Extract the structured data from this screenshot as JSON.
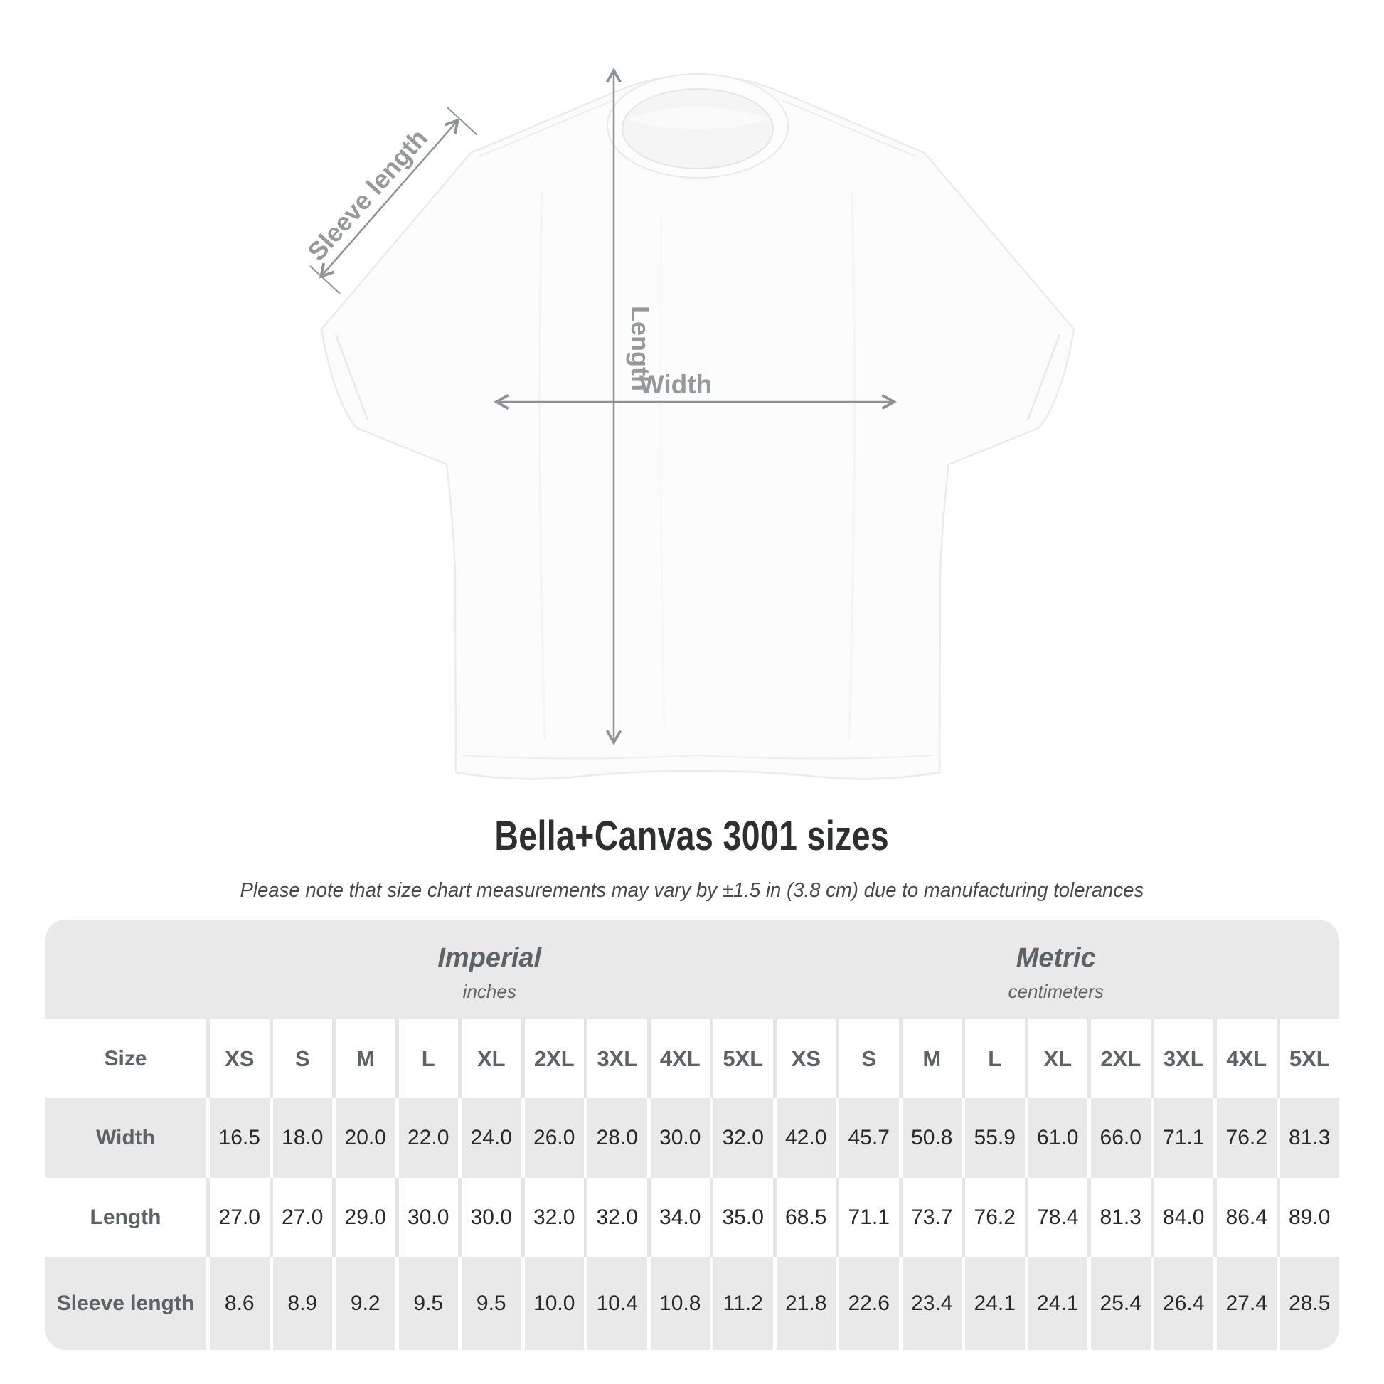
{
  "title": "Bella+Canvas 3001 sizes",
  "subtitle": "Please note that size chart measurements may vary by ±1.5 in (3.8 cm) due to manufacturing tolerances",
  "diagram": {
    "sleeve_length_label": "Sleeve length",
    "length_label": "Length",
    "width_label": "Width"
  },
  "table": {
    "size_header": "Size",
    "sections": [
      {
        "label": "Imperial",
        "units": "inches"
      },
      {
        "label": "Metric",
        "units": "centimeters"
      }
    ],
    "sizes": [
      "XS",
      "S",
      "M",
      "L",
      "XL",
      "2XL",
      "3XL",
      "4XL",
      "5XL"
    ],
    "rows": [
      {
        "label": "Width",
        "imperial": [
          "16.5",
          "18.0",
          "20.0",
          "22.0",
          "24.0",
          "26.0",
          "28.0",
          "30.0",
          "32.0"
        ],
        "metric": [
          "42.0",
          "45.7",
          "50.8",
          "55.9",
          "61.0",
          "66.0",
          "71.1",
          "76.2",
          "81.3"
        ]
      },
      {
        "label": "Length",
        "imperial": [
          "27.0",
          "27.0",
          "29.0",
          "30.0",
          "30.0",
          "32.0",
          "32.0",
          "34.0",
          "35.0"
        ],
        "metric": [
          "68.5",
          "71.1",
          "73.7",
          "76.2",
          "78.4",
          "81.3",
          "84.0",
          "86.4",
          "89.0"
        ]
      },
      {
        "label": "Sleeve length",
        "imperial": [
          "8.6",
          "8.9",
          "9.2",
          "9.5",
          "9.5",
          "10.0",
          "10.4",
          "10.8",
          "11.2"
        ],
        "metric": [
          "21.8",
          "22.6",
          "23.4",
          "24.1",
          "24.1",
          "25.4",
          "26.4",
          "27.4",
          "28.5"
        ]
      }
    ]
  },
  "colors": {
    "dimension_gray": "#8d9296",
    "label_gray": "#95999c",
    "table_gray": "#e9e9ea",
    "header_text": "#5d6266",
    "value_text": "#26282a",
    "title_text": "#2d2f31"
  },
  "chart_data": {
    "type": "table",
    "title": "Bella+Canvas 3001 sizes",
    "note": "Please note that size chart measurements may vary by ±1.5 in (3.8 cm) due to manufacturing tolerances",
    "column_groups": [
      "Imperial (inches)",
      "Metric (centimeters)"
    ],
    "columns": [
      "Size",
      "XS",
      "S",
      "M",
      "L",
      "XL",
      "2XL",
      "3XL",
      "4XL",
      "5XL",
      "XS",
      "S",
      "M",
      "L",
      "XL",
      "2XL",
      "3XL",
      "4XL",
      "5XL"
    ],
    "rows": [
      [
        "Width",
        16.5,
        18.0,
        20.0,
        22.0,
        24.0,
        26.0,
        28.0,
        30.0,
        32.0,
        42.0,
        45.7,
        50.8,
        55.9,
        61.0,
        66.0,
        71.1,
        76.2,
        81.3
      ],
      [
        "Length",
        27.0,
        27.0,
        29.0,
        30.0,
        30.0,
        32.0,
        32.0,
        34.0,
        35.0,
        68.5,
        71.1,
        73.7,
        76.2,
        78.4,
        81.3,
        84.0,
        86.4,
        89.0
      ],
      [
        "Sleeve length",
        8.6,
        8.9,
        9.2,
        9.5,
        9.5,
        10.0,
        10.4,
        10.8,
        11.2,
        21.8,
        22.6,
        23.4,
        24.1,
        24.1,
        25.4,
        26.4,
        27.4,
        28.5
      ]
    ]
  }
}
